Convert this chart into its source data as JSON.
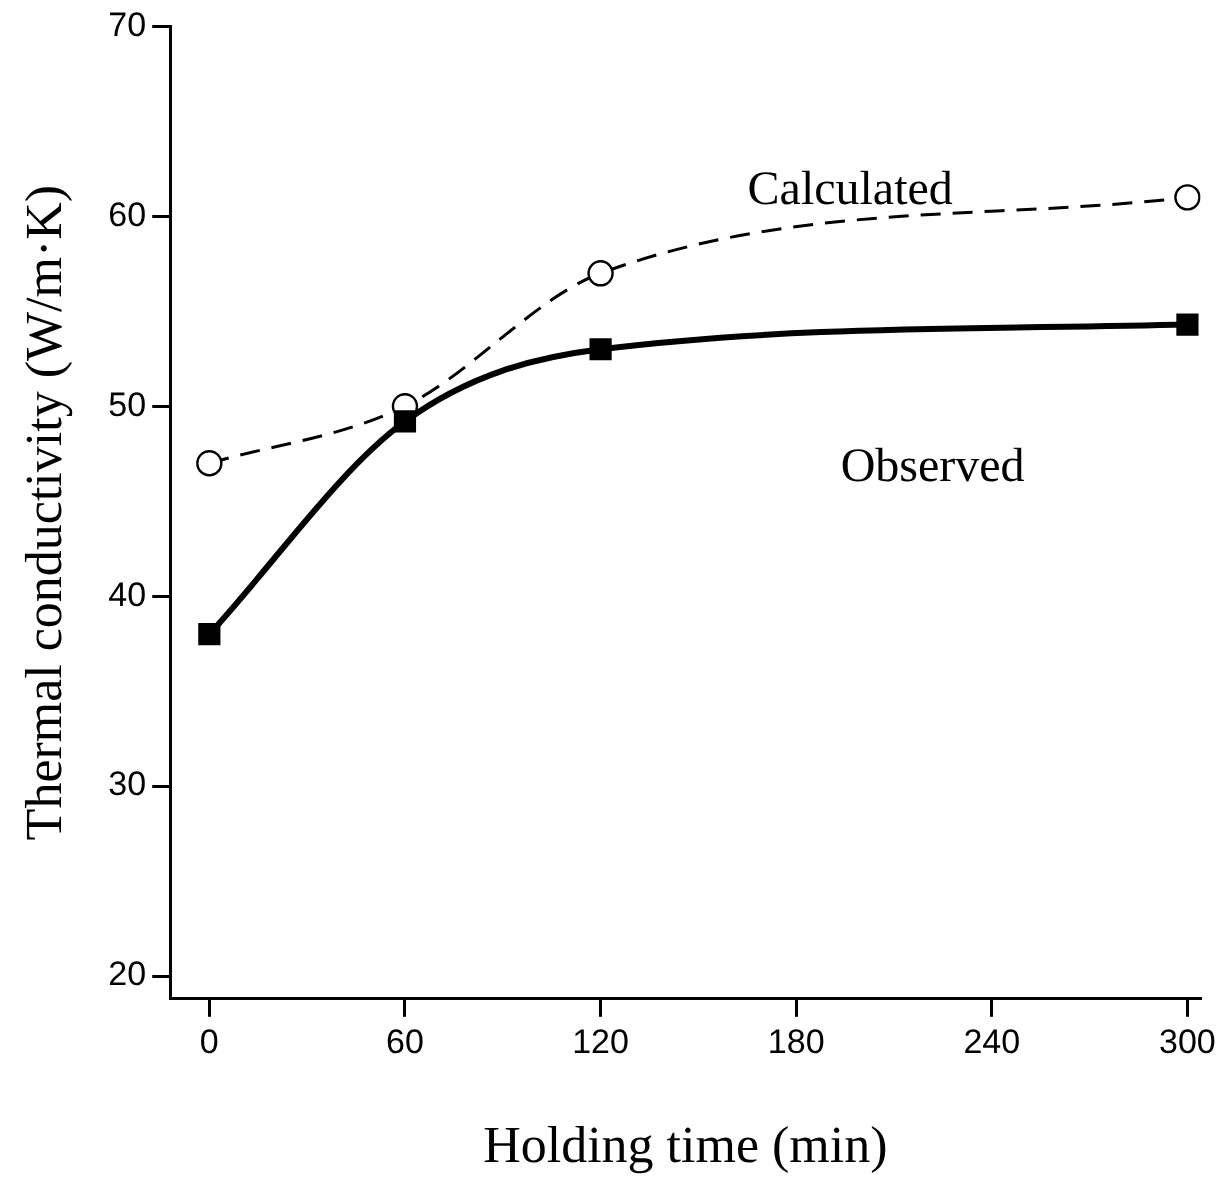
{
  "chart_data": {
    "type": "line",
    "xlabel": "Holding time (min)",
    "ylabel": "Thermal conductivity (W/m·K)",
    "xlim": [
      -12,
      304
    ],
    "xticks": [
      0,
      60,
      120,
      180,
      240,
      300
    ],
    "ylim": [
      18.8,
      70
    ],
    "yticks": [
      20,
      30,
      40,
      50,
      60,
      70
    ],
    "grid": false,
    "legend": false,
    "series": [
      {
        "color": "#000000",
        "x": [
          0,
          60,
          120,
          300
        ],
        "values": [
          38,
          49.2,
          53,
          54.3
        ],
        "marker": "square",
        "line_style": "solid"
      },
      {
        "color": "#000000",
        "x": [
          0,
          60,
          120,
          300
        ],
        "values": [
          47,
          50,
          57,
          61
        ],
        "marker": "circle",
        "line_style": "dashed"
      }
    ],
    "annotations": [
      "Calculated",
      "Observed"
    ]
  }
}
